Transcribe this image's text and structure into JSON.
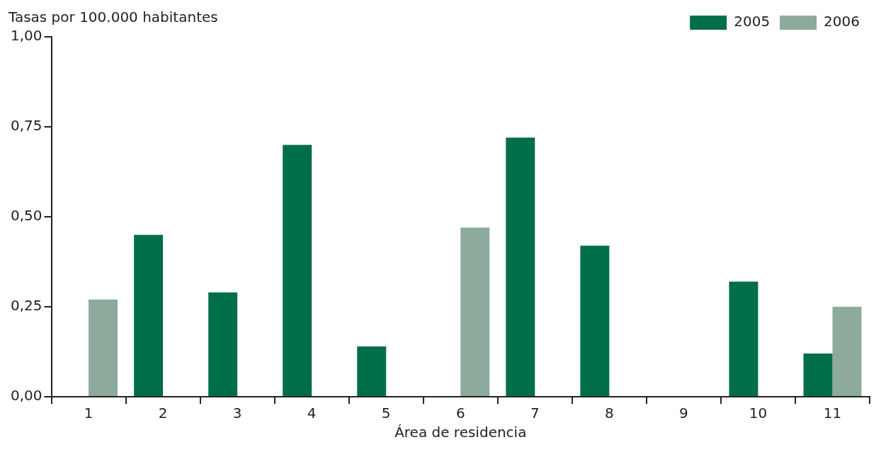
{
  "chart_data": {
    "type": "bar",
    "ylabel": "Tasas por 100.000 habitantes",
    "xlabel": "Área de residencia",
    "categories": [
      "1",
      "2",
      "3",
      "4",
      "5",
      "6",
      "7",
      "8",
      "9",
      "10",
      "11"
    ],
    "series": [
      {
        "name": "2005",
        "color": "#006e4a",
        "values": [
          0,
          0.45,
          0.29,
          0.7,
          0.14,
          0,
          0.72,
          0.42,
          0,
          0.32,
          0.12
        ]
      },
      {
        "name": "2006",
        "color": "#8daa9c",
        "values": [
          0.27,
          0,
          0,
          0,
          0,
          0.47,
          0,
          0,
          0,
          0,
          0.25
        ]
      }
    ],
    "ylim": [
      0,
      1
    ],
    "yticks": [
      {
        "value": 0,
        "label": "0,00"
      },
      {
        "value": 0.25,
        "label": "0,25"
      },
      {
        "value": 0.5,
        "label": "0,50"
      },
      {
        "value": 0.75,
        "label": "0,75"
      },
      {
        "value": 1,
        "label": "1,00"
      }
    ],
    "grid": false,
    "legend": "top right"
  }
}
